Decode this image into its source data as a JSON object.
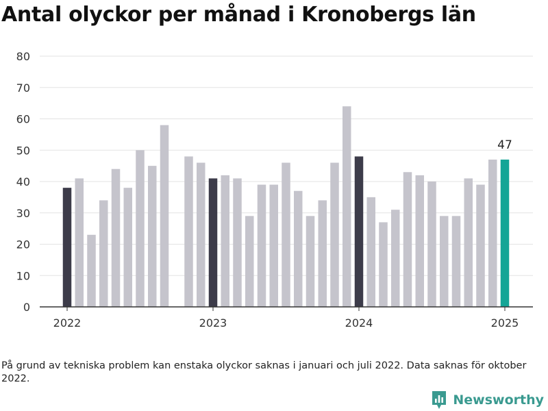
{
  "title": "Antal olyckor per månad i Kronobergs län",
  "footnote": "På grund av tekniska problem kan enstaka olyckor saknas i januari och juli 2022. Data saknas för oktober 2022.",
  "brand": {
    "name": "Newsworthy",
    "icon": "newsworthy-logo-icon"
  },
  "colors": {
    "default": "#c5c4cc",
    "january": "#3d3c4a",
    "latest": "#14a596",
    "grid": "#e3e3e3",
    "axis": "#333333"
  },
  "chart_data": {
    "type": "bar",
    "title": "Antal olyckor per månad i Kronobergs län",
    "xlabel": "",
    "ylabel": "",
    "ylim": [
      0,
      80
    ],
    "y_ticks": [
      0,
      10,
      20,
      30,
      40,
      50,
      60,
      70,
      80
    ],
    "x_ticks": [
      "2022",
      "2023",
      "2024",
      "2025"
    ],
    "grid": true,
    "categories": [
      "2022-01",
      "2022-02",
      "2022-03",
      "2022-04",
      "2022-05",
      "2022-06",
      "2022-07",
      "2022-08",
      "2022-09",
      "2022-10",
      "2022-11",
      "2022-12",
      "2023-01",
      "2023-02",
      "2023-03",
      "2023-04",
      "2023-05",
      "2023-06",
      "2023-07",
      "2023-08",
      "2023-09",
      "2023-10",
      "2023-11",
      "2023-12",
      "2024-01",
      "2024-02",
      "2024-03",
      "2024-04",
      "2024-05",
      "2024-06",
      "2024-07",
      "2024-08",
      "2024-09",
      "2024-10",
      "2024-11",
      "2024-12",
      "2025-01"
    ],
    "values": [
      38,
      41,
      23,
      34,
      44,
      38,
      50,
      45,
      58,
      null,
      48,
      46,
      41,
      42,
      41,
      29,
      39,
      39,
      46,
      37,
      29,
      34,
      46,
      64,
      48,
      35,
      27,
      31,
      43,
      42,
      40,
      29,
      29,
      41,
      39,
      47,
      47
    ],
    "annotations": [
      {
        "x": "2025-01",
        "text": "47"
      }
    ]
  }
}
